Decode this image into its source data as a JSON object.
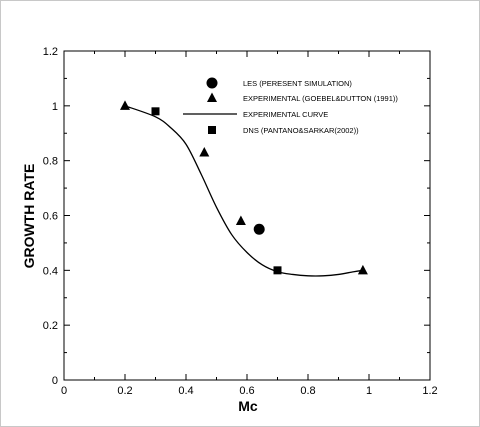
{
  "chart_data": {
    "type": "scatter",
    "xlabel": "Mc",
    "ylabel": "GROWTH RATE",
    "xlim": [
      0,
      1.2
    ],
    "ylim": [
      0,
      1.2
    ],
    "xticks": [
      "0",
      "0.2",
      "0.4",
      "0.6",
      "0.8",
      "1",
      "1.2"
    ],
    "yticks": [
      "0",
      "0.2",
      "0.4",
      "0.6",
      "0.8",
      "1",
      "1.2"
    ],
    "legend_position": "top-right",
    "grid": false,
    "series": [
      {
        "name": "LES (PERESENT SIMULATION)",
        "marker": "circle",
        "x": [
          0.64
        ],
        "y": [
          0.55
        ]
      },
      {
        "name": "EXPERIMENTAL (GOEBEL&DUTTON (1991))",
        "marker": "triangle",
        "x": [
          0.2,
          0.46,
          0.58,
          0.98
        ],
        "y": [
          1.0,
          0.83,
          0.58,
          0.4
        ]
      },
      {
        "name": "EXPERIMENTAL CURVE",
        "marker": "line",
        "x": [
          0.2,
          0.3,
          0.35,
          0.4,
          0.45,
          0.5,
          0.55,
          0.6,
          0.65,
          0.7,
          0.75,
          0.8,
          0.85,
          0.9,
          0.95,
          0.98
        ],
        "y": [
          1.0,
          0.96,
          0.92,
          0.86,
          0.75,
          0.63,
          0.53,
          0.465,
          0.42,
          0.395,
          0.385,
          0.38,
          0.38,
          0.385,
          0.395,
          0.4
        ]
      },
      {
        "name": "DNS (PANTANO&SARKAR(2002))",
        "marker": "square",
        "x": [
          0.3,
          0.7
        ],
        "y": [
          0.98,
          0.4
        ]
      }
    ]
  }
}
